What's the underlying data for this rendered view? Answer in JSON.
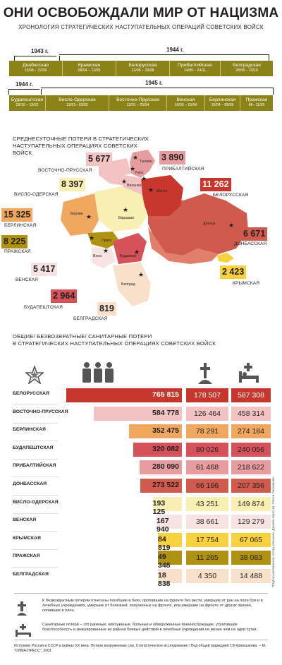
{
  "title": "ОНИ ОСВОБОЖДАЛИ МИР ОТ НАЦИЗМА",
  "subtitle": "ХРОНОЛОГИЯ СТРАТЕГИЧЕСКИХ НАСТУПАТЕЛЬНЫХ ОПЕРАЦИЙ СОВЕТСКИХ  ВОЙСК",
  "timeline1": {
    "year_left": "1943 г.",
    "year_right": "1944 г.",
    "ops": [
      {
        "name": "Донбасская",
        "dates": "13/08 – 22/09"
      },
      {
        "name": "Крымская",
        "dates": "08/04 – 12/05"
      },
      {
        "name": "Белорусская",
        "dates": "23/06 – 29/08"
      },
      {
        "name": "Прибалтийская",
        "dates": "14/09 – 24/11"
      },
      {
        "name": "Белградская",
        "dates": "28/09 – 20/10"
      }
    ]
  },
  "timeline2": {
    "year_left": "1944 г.",
    "year_right": "1945 г.",
    "ops": [
      {
        "name": "Будапештская",
        "dates": "29/10 – 13/02"
      },
      {
        "name": "Висло-Одерская",
        "dates": "12/01– 03/02"
      },
      {
        "name": "Восточно-Прусская",
        "dates": "13/01 – 25/04"
      },
      {
        "name": "Венская",
        "dates": "16/03 – 15/04"
      },
      {
        "name": "Берлинская",
        "dates": "16/04 – 08/05"
      },
      {
        "name": "Пражская",
        "dates": "06– 11/05"
      }
    ]
  },
  "map_section_title": "СРЕДНЕСУТОЧНЫЕ ПОТЕРИ В СТРАТЕГИЧЕСКИХ НАСТУПАТЕЛЬНЫХ ОПЕРАЦИЯХ СОВЕТСКИХ ВОЙСК",
  "daily_losses": [
    {
      "value": "5 677",
      "name": "ВОСТОЧНО-ПРУССКАЯ",
      "color": "#f2c3c2"
    },
    {
      "value": "3 890",
      "name": "ПРИБАЛТИЙСКАЯ",
      "color": "#e79d9f"
    },
    {
      "value": "8 397",
      "name": "ВИСЛО-ОДЕРСКАЯ",
      "color": "#f8efb4"
    },
    {
      "value": "11 262",
      "name": "БЕЛОРУССКАЯ",
      "color": "#c8372d"
    },
    {
      "value": "15 325",
      "name": "БЕРЛИНСКАЯ",
      "color": "#f0a860"
    },
    {
      "value": "6 671",
      "name": "ДОНБАССКАЯ",
      "color": "#cf5a4d"
    },
    {
      "value": "8 225",
      "name": "ПРАЖСКАЯ",
      "color": "#b09212"
    },
    {
      "value": "2 423",
      "name": "КРЫМСКАЯ",
      "color": "#f7d13e"
    },
    {
      "value": "5 417",
      "name": "ВЕНСКАЯ",
      "color": "#f8e3e3"
    },
    {
      "value": "2 964",
      "name": "БУДАПЕШТСКАЯ",
      "color": "#d6525a"
    },
    {
      "value": "819",
      "name": "БЕЛГРАДСКАЯ",
      "color": "#f9e0ca"
    }
  ],
  "cities": [
    "Таллин",
    "Рига",
    "Вильнюс",
    "Минск",
    "Берлин",
    "Варшава",
    "Прага",
    "Вена",
    "Будапешт",
    "Донецк",
    "Белград"
  ],
  "table_title_1": "ОБЩИЕ/ БЕЗВОЗВРАТНЫЕ/ САНИТАРНЫЕ ПОТЕРИ",
  "table_title_2": "В СТРАТЕГИЧЕСКИХ НАСТУПАТЕЛЬНЫХ ОПЕРАЦИЯХ СОВЕТСКИХ ВОЙСК",
  "icons": {
    "header_left": "soviet-star-icon",
    "total": "soldiers-icon",
    "irrecoverable": "grave-cross-icon",
    "sanitary": "hospital-bed-icon"
  },
  "chart_data": {
    "type": "table",
    "columns": [
      "",
      "Общие",
      "Безвозвратные",
      "Санитарные"
    ],
    "rows": [
      {
        "name": "БЕЛОРУССКАЯ",
        "total": "765 815",
        "irrecoverable": "178 507",
        "sanitary": "587 308",
        "total_value": 765815,
        "color": "#c8372d"
      },
      {
        "name": "ВОСТОЧНО-ПРУССКАЯ",
        "total": "584 778",
        "irrecoverable": "126 464",
        "sanitary": "458 314",
        "total_value": 584778,
        "color": "#f2c3c2"
      },
      {
        "name": "БЕРЛИНСКАЯ",
        "total": "352 475",
        "irrecoverable": "78 291",
        "sanitary": "274 184",
        "total_value": 352475,
        "color": "#f0a860"
      },
      {
        "name": "БУДАПЕШТСКАЯ",
        "total": "320 082",
        "irrecoverable": "80 026",
        "sanitary": "240 056",
        "total_value": 320082,
        "color": "#d6525a"
      },
      {
        "name": "ПРИБАЛТИЙСКАЯ",
        "total": "280 090",
        "irrecoverable": "61 468",
        "sanitary": "218 622",
        "total_value": 280090,
        "color": "#e79d9f"
      },
      {
        "name": "ДОНБАССКАЯ",
        "total": "273 522",
        "irrecoverable": "66 166",
        "sanitary": "207 356",
        "total_value": 273522,
        "color": "#cf5a4d"
      },
      {
        "name": "ВИСЛО-ОДЕРСКАЯ",
        "total": "193 125",
        "irrecoverable": "43 251",
        "sanitary": "149 874",
        "total_value": 193125,
        "color": "#f8efb4"
      },
      {
        "name": "ВЕНСКАЯ",
        "total": "167 940",
        "irrecoverable": "38 661",
        "sanitary": "129 279",
        "total_value": 167940,
        "color": "#f8e3e3"
      },
      {
        "name": "КРЫМСКАЯ",
        "total": "84 819",
        "irrecoverable": "17 754",
        "sanitary": "67 065",
        "total_value": 84819,
        "color": "#f7d13e"
      },
      {
        "name": "ПРАЖСКАЯ",
        "total": "49 348",
        "irrecoverable": "11 265",
        "sanitary": "38 083",
        "total_value": 49348,
        "color": "#b09212"
      },
      {
        "name": "БЕЛГРАДСКАЯ",
        "total": "18 838",
        "irrecoverable": "4 350",
        "sanitary": "14 488",
        "total_value": 18838,
        "color": "#f9e0ca"
      }
    ]
  },
  "note_irrecoverable": "К безвозвратным потерям отнесены погибшие в боях, пропавшие на фронте без вести, умершие от ран на поле боя и в лечебных учреждениях, умершие от болезней, полученных на фронте, или умершие на фронте от других причин, попавшие в плен.",
  "note_sanitary": "Санитарные потери – это раненые, контуженые, больные и обмороженные военнослужащие, утратившие боеспособность и эвакуированные из района боевых действий в лечебные учреждения не менее чем на одни сутки.",
  "source": "Источник: Россия и СССР в войнах XX века. Потери вооруженных сил. Статистическое исследование / Под общей редакцией Г.В Кривошеева. – М.: \"ОЛМА-ПРЕСС\", 2001",
  "credits": "Подбор материала: Игорь Шишкин. Дизайн-верстка: Ольга Любимова"
}
